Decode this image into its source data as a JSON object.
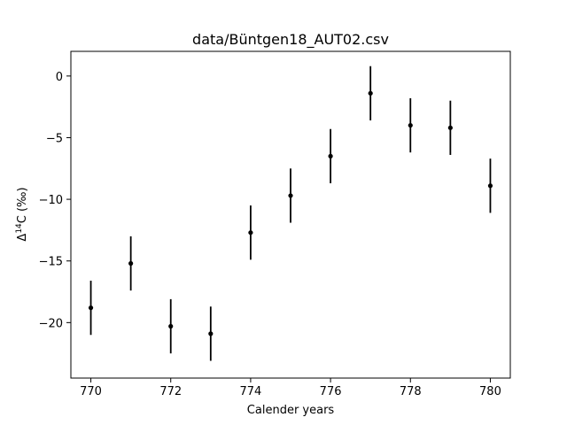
{
  "chart_data": {
    "type": "scatter",
    "title": "data/Büntgen18_AUT02.csv",
    "xlabel": "Calender years",
    "ylabel_prefix": "Δ",
    "ylabel_superscript": "14",
    "ylabel_suffix": "C (‰)",
    "xlim": [
      769.5,
      780.5
    ],
    "ylim": [
      -24.5,
      2.0
    ],
    "xticks": [
      770,
      772,
      774,
      776,
      778,
      780
    ],
    "xtick_labels": [
      "770",
      "772",
      "774",
      "776",
      "778",
      "780"
    ],
    "yticks": [
      0,
      -5,
      -10,
      -15,
      -20
    ],
    "ytick_labels": [
      "0",
      "−5",
      "−10",
      "−15",
      "−20"
    ],
    "grid": false,
    "marker_color": "#000000",
    "series": [
      {
        "x": [
          770,
          771,
          772,
          773,
          774,
          775,
          776,
          777,
          778,
          779,
          780
        ],
        "y": [
          -18.8,
          -15.2,
          -20.3,
          -20.9,
          -12.7,
          -9.7,
          -6.5,
          -1.4,
          -4.0,
          -4.2,
          -8.9
        ],
        "yerr": [
          2.2,
          2.2,
          2.2,
          2.2,
          2.2,
          2.2,
          2.2,
          2.2,
          2.2,
          2.2,
          2.2
        ]
      }
    ]
  }
}
